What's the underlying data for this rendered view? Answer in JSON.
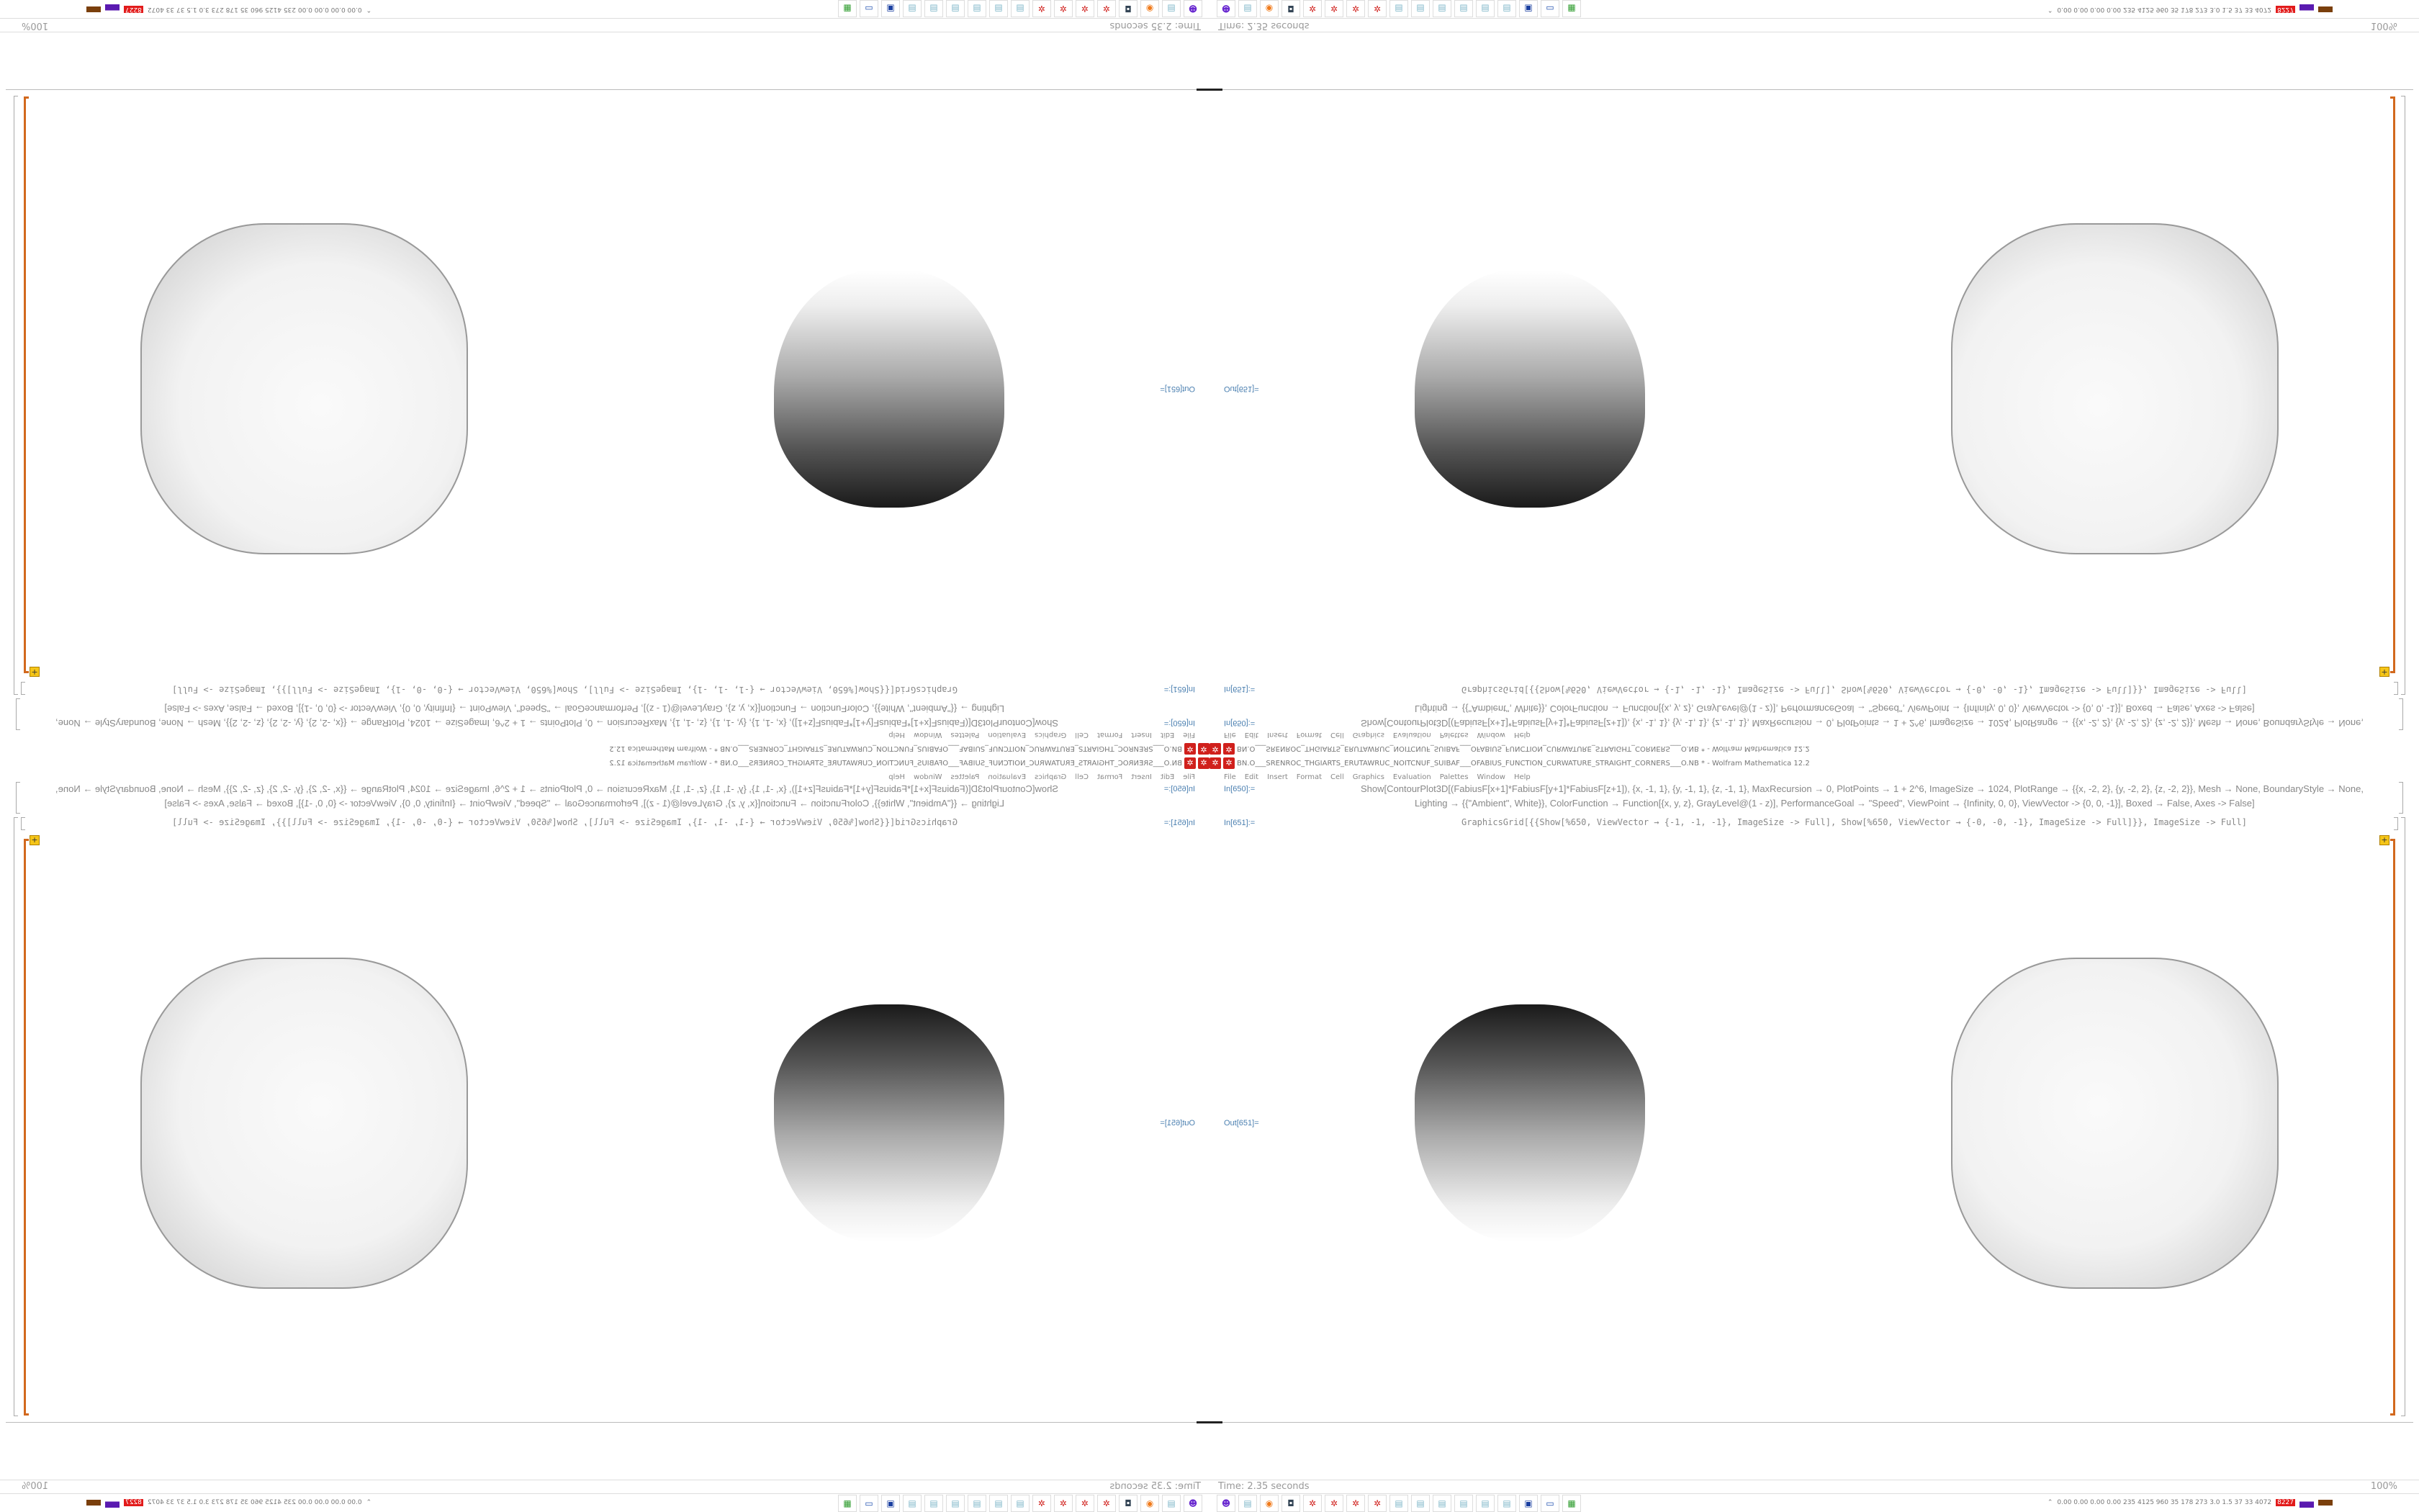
{
  "window": {
    "title": "FABIUS_FUNCTION_CURWATURE_STRAIGHT_CORNERS___O.NB * - Wolfram Mathematica 12.2",
    "title_reversed": "BN.O___SRENROC_THGIARTS_ERUTAWRUC_NOITCNUF_SUIBAF___O",
    "app_icon": "mathematica-icon",
    "brand_color": "#d0201c"
  },
  "menu": [
    "File",
    "Edit",
    "Insert",
    "Format",
    "Cell",
    "Graphics",
    "Evaluation",
    "Palettes",
    "Window",
    "Help"
  ],
  "cells": [
    {
      "label": "In[650]:=",
      "code_line1": "Show[ContourPlot3D[(FabiusF[x+1]*FabiusF[y+1]*FabiusF[z+1]), {x, -1, 1}, {y, -1, 1}, {z, -1, 1}, MaxRecursion → 0, PlotPoints → 1 + 2^6, ImageSize → 1024, PlotRange → {{x, -2, 2}, {y, -2, 2}, {z, -2, 2}}, Mesh → None, BoundaryStyle → None,",
      "code_line2": "Lighting → {{\"Ambient\", White}}, ColorFunction → Function[{x, y, z}, GrayLevel@(1 - z)], PerformanceGoal → \"Speed\", ViewPoint → {Infinity, 0, 0}, ViewVector -> {0, 0, -1}], Boxed → False, Axes -> False]"
    },
    {
      "label": "In[651]:=",
      "code_line1": "GraphicsGrid[{{Show[%650, ViewVector → {-1, -1, -1}, ImageSize -> Full], Show[%650, ViewVector → {-0, -0, -1}, ImageSize -> Full]}}, ImageSize -> Full]"
    }
  ],
  "output": {
    "label": "Out[651]="
  },
  "status": {
    "time": "Time: 2.35 seconds",
    "zoom": "100%"
  },
  "taskbar": {
    "icons": [
      "discord-icon",
      "notepad-icon",
      "firefox-icon",
      "webcam-icon",
      "mathematica-icon",
      "mathematica-icon",
      "mathematica-icon",
      "mathematica-icon",
      "notepad-icon",
      "notepad-icon",
      "notepad-icon",
      "notepad-icon",
      "notepad-icon",
      "notepad-icon",
      "floppy-icon",
      "computer-icon",
      "green-terminal-icon"
    ],
    "tray_text": "0.00 0.00 0.00 0.00 235 4125 960 35 178 273 3.0 1.5 37 33 4072",
    "tray_alert": "8227",
    "alert_color": "#e21b1b"
  }
}
